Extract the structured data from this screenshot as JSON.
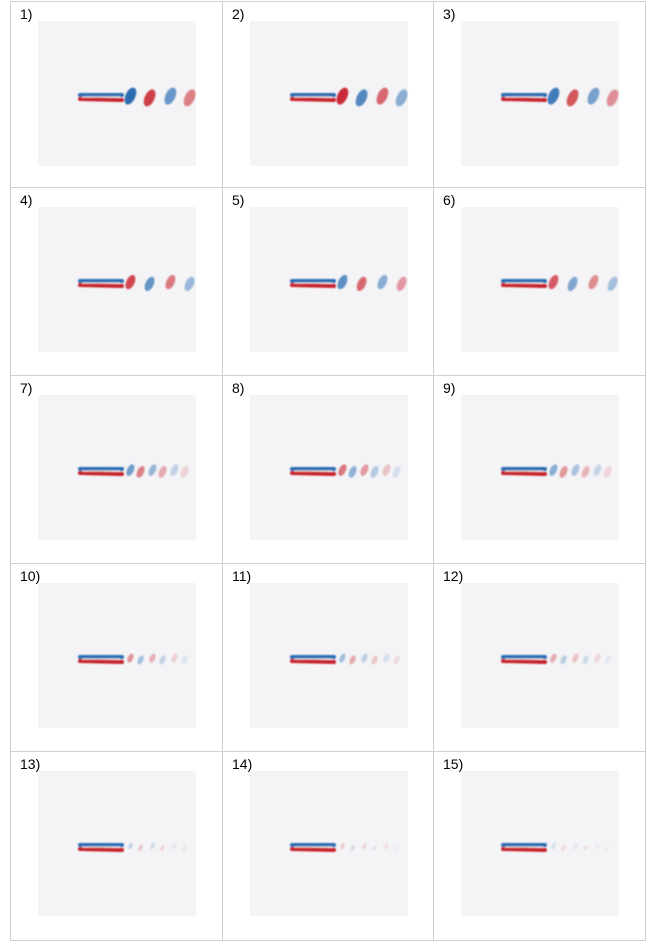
{
  "panels": [
    {
      "label": "1)"
    },
    {
      "label": "2)"
    },
    {
      "label": "3)"
    },
    {
      "label": "4)"
    },
    {
      "label": "5)"
    },
    {
      "label": "6)"
    },
    {
      "label": "7)"
    },
    {
      "label": "8)"
    },
    {
      "label": "9)"
    },
    {
      "label": "10)"
    },
    {
      "label": "11)"
    },
    {
      "label": "12)"
    },
    {
      "label": "13)"
    },
    {
      "label": "14)"
    },
    {
      "label": "15)"
    }
  ]
}
